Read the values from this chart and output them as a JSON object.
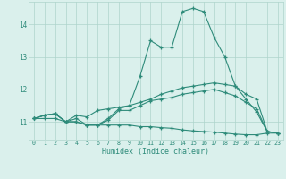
{
  "xlabel": "Humidex (Indice chaleur)",
  "x_values": [
    0,
    1,
    2,
    3,
    4,
    5,
    6,
    7,
    8,
    9,
    10,
    11,
    12,
    13,
    14,
    15,
    16,
    17,
    18,
    19,
    20,
    21,
    22,
    23
  ],
  "line1": [
    11.1,
    11.2,
    11.25,
    11.0,
    11.1,
    10.9,
    10.9,
    11.1,
    11.4,
    11.5,
    12.4,
    13.5,
    13.3,
    13.3,
    14.4,
    14.5,
    14.4,
    13.6,
    13.0,
    12.1,
    11.7,
    11.3,
    10.7,
    10.65
  ],
  "line2": [
    11.1,
    11.2,
    11.25,
    11.0,
    11.2,
    11.15,
    11.35,
    11.4,
    11.45,
    11.5,
    11.6,
    11.7,
    11.85,
    11.95,
    12.05,
    12.1,
    12.15,
    12.2,
    12.15,
    12.1,
    11.85,
    11.7,
    10.7,
    10.65
  ],
  "line3": [
    11.1,
    11.2,
    11.25,
    11.0,
    11.0,
    10.9,
    10.9,
    11.05,
    11.35,
    11.35,
    11.5,
    11.65,
    11.7,
    11.75,
    11.85,
    11.9,
    11.95,
    12.0,
    11.9,
    11.8,
    11.6,
    11.4,
    10.7,
    10.65
  ],
  "line4": [
    11.1,
    11.1,
    11.1,
    11.0,
    11.0,
    10.9,
    10.9,
    10.9,
    10.9,
    10.9,
    10.85,
    10.85,
    10.82,
    10.8,
    10.75,
    10.72,
    10.7,
    10.68,
    10.65,
    10.62,
    10.6,
    10.6,
    10.65,
    10.65
  ],
  "line_color": "#2e8b7a",
  "bg_color": "#daf0ec",
  "grid_color": "#aed4cc",
  "ylim": [
    10.45,
    14.7
  ],
  "yticks": [
    11,
    12,
    13,
    14
  ],
  "xticks": [
    0,
    1,
    2,
    3,
    4,
    5,
    6,
    7,
    8,
    9,
    10,
    11,
    12,
    13,
    14,
    15,
    16,
    17,
    18,
    19,
    20,
    21,
    22,
    23
  ]
}
